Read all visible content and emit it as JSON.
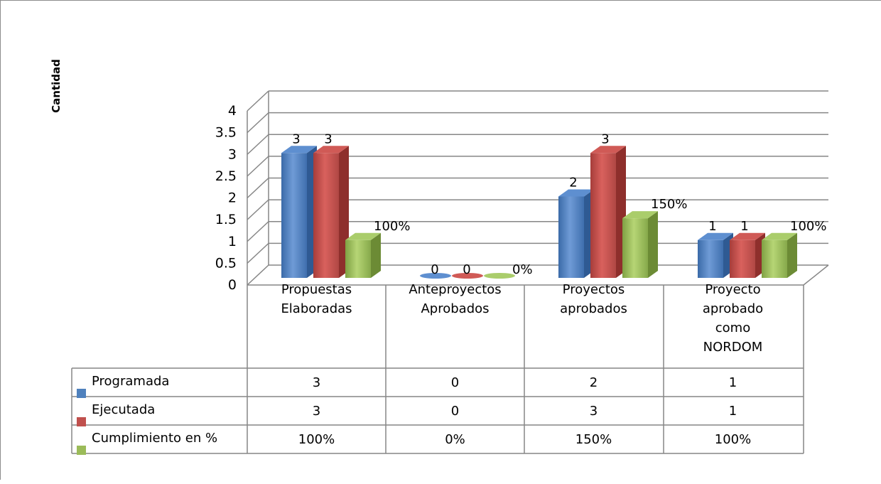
{
  "chart_data": {
    "type": "bar",
    "y_axis_title": "Cantidad",
    "y_ticks": [
      "0",
      "0.5",
      "1",
      "1.5",
      "2",
      "2.5",
      "3",
      "3.5",
      "4"
    ],
    "ylim": [
      0,
      4
    ],
    "categories": [
      [
        "Propuestas",
        "Elaboradas"
      ],
      [
        "Anteproyectos",
        "Aprobados"
      ],
      [
        "Proyectos",
        "aprobados"
      ],
      [
        "Proyecto",
        "aprobado",
        "como",
        "NORDOM"
      ]
    ],
    "series": [
      {
        "name": "Programada",
        "values": [
          3,
          0,
          2,
          1
        ],
        "labels": [
          "3",
          "0",
          "2",
          "1"
        ],
        "color": "#4f81bd"
      },
      {
        "name": "Ejecutada",
        "values": [
          3,
          0,
          3,
          1
        ],
        "labels": [
          "3",
          "0",
          "3",
          "1"
        ],
        "color": "#c0504d"
      },
      {
        "name": "Cumplimiento en %",
        "values": [
          1,
          0,
          1.5,
          1
        ],
        "labels": [
          "100%",
          "0%",
          "150%",
          "100%"
        ],
        "color": "#9bbb59"
      }
    ],
    "data_table": {
      "rows": [
        {
          "name": "Programada",
          "cells": [
            "3",
            "0",
            "2",
            "1"
          ]
        },
        {
          "name": "Ejecutada",
          "cells": [
            "3",
            "0",
            "3",
            "1"
          ]
        },
        {
          "name": "Cumplimiento en %",
          "cells": [
            "100%",
            "0%",
            "150%",
            "100%"
          ]
        }
      ]
    },
    "grid": true,
    "legend": "data table"
  }
}
